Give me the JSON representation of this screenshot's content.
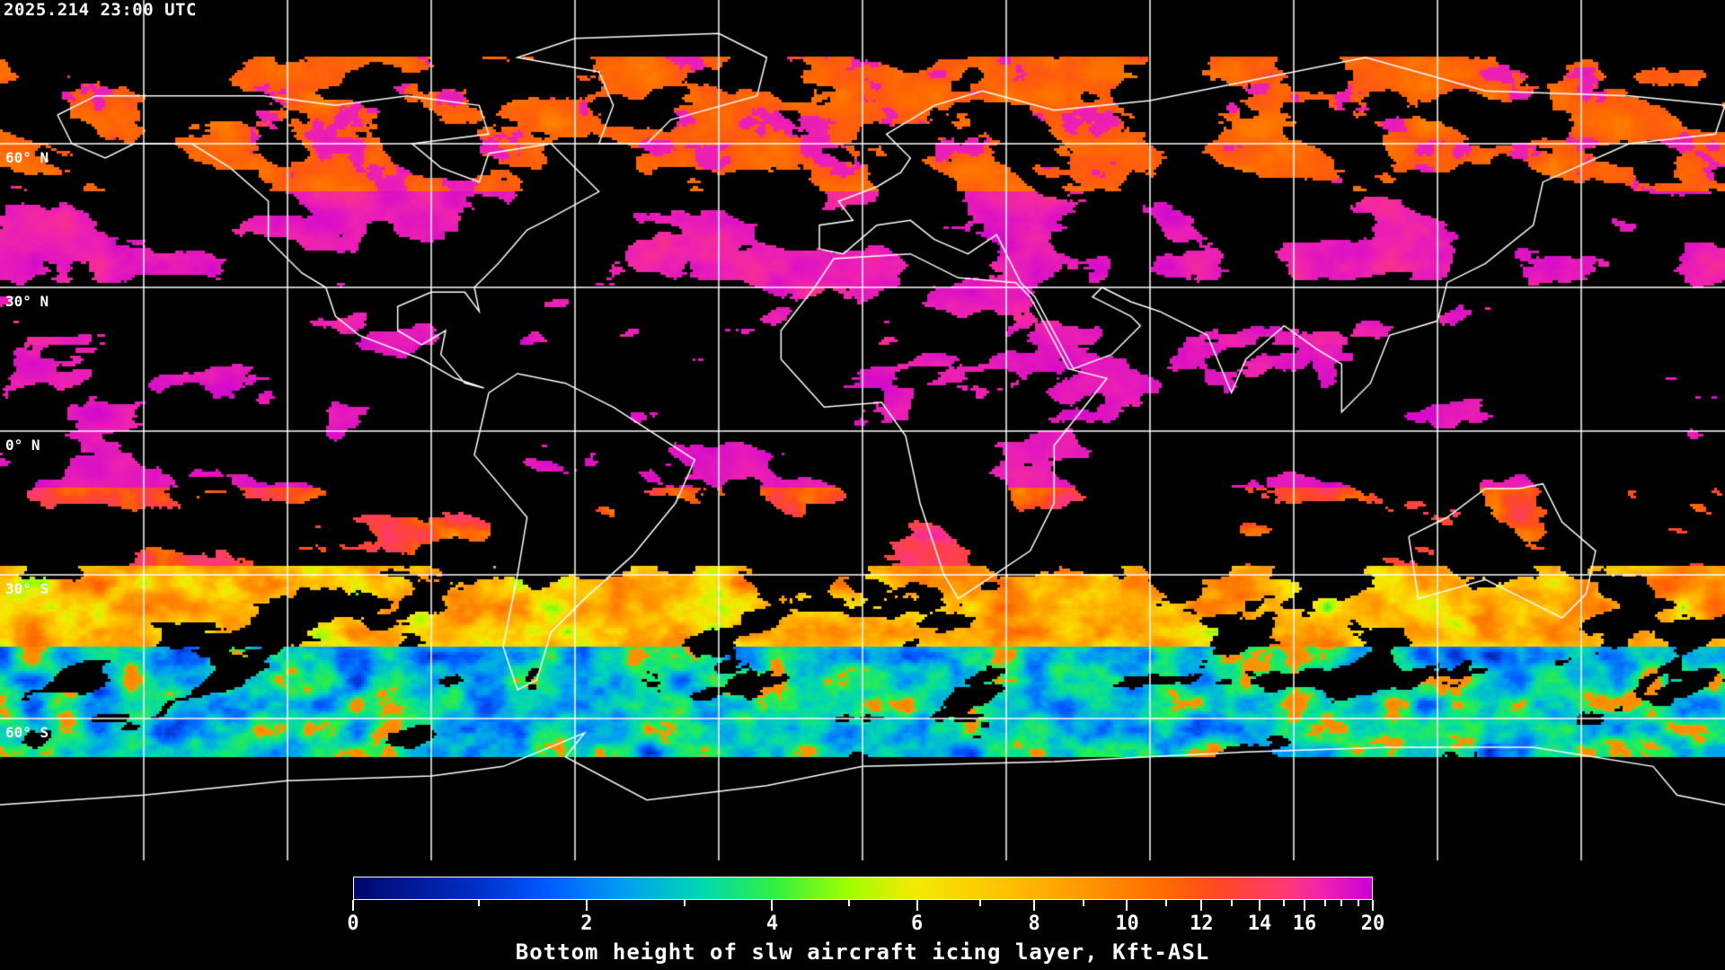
{
  "header": {
    "timestamp": "2025.214 23:00 UTC"
  },
  "map": {
    "projection": "equirectangular",
    "lon_range": [
      -180,
      180
    ],
    "lat_range": [
      -90,
      90
    ],
    "graticule_step_deg": 30,
    "lat_labels": [
      {
        "lat": 60,
        "text": "60° N"
      },
      {
        "lat": 30,
        "text": "30° N"
      },
      {
        "lat": 0,
        "text": "0° N"
      },
      {
        "lat": -30,
        "text": "30° S"
      },
      {
        "lat": -60,
        "text": "60° S"
      }
    ],
    "background_color": "#000000",
    "coastline_color": "#ffffff",
    "grid_color": "#ffffff"
  },
  "colorbar": {
    "title": "Bottom height of slw aircraft icing layer, Kft-ASL",
    "range": [
      0,
      20
    ],
    "tick_labels": [
      "0",
      "2",
      "4",
      "6",
      "8",
      "10",
      "12",
      "14",
      "16",
      "20"
    ],
    "major_ticks": [
      0,
      2,
      4,
      6,
      8,
      10,
      12,
      14,
      16,
      20
    ],
    "minor_ticks": [
      1,
      3,
      5,
      7,
      9,
      11,
      13,
      15,
      17,
      18,
      19
    ],
    "stops": [
      [
        0,
        "#00066a"
      ],
      [
        1,
        "#0030c8"
      ],
      [
        1.6,
        "#0058ff"
      ],
      [
        2.4,
        "#00a0f0"
      ],
      [
        3.2,
        "#00d8b0"
      ],
      [
        4,
        "#30f040"
      ],
      [
        5,
        "#a0ff00"
      ],
      [
        6,
        "#f4ea00"
      ],
      [
        7.5,
        "#ffc000"
      ],
      [
        9,
        "#ff9800"
      ],
      [
        11,
        "#ff6a00"
      ],
      [
        12.5,
        "#ff4a20"
      ],
      [
        15,
        "#ff3a70"
      ],
      [
        17,
        "#ee22b0"
      ],
      [
        20,
        "#c800d8"
      ]
    ]
  }
}
